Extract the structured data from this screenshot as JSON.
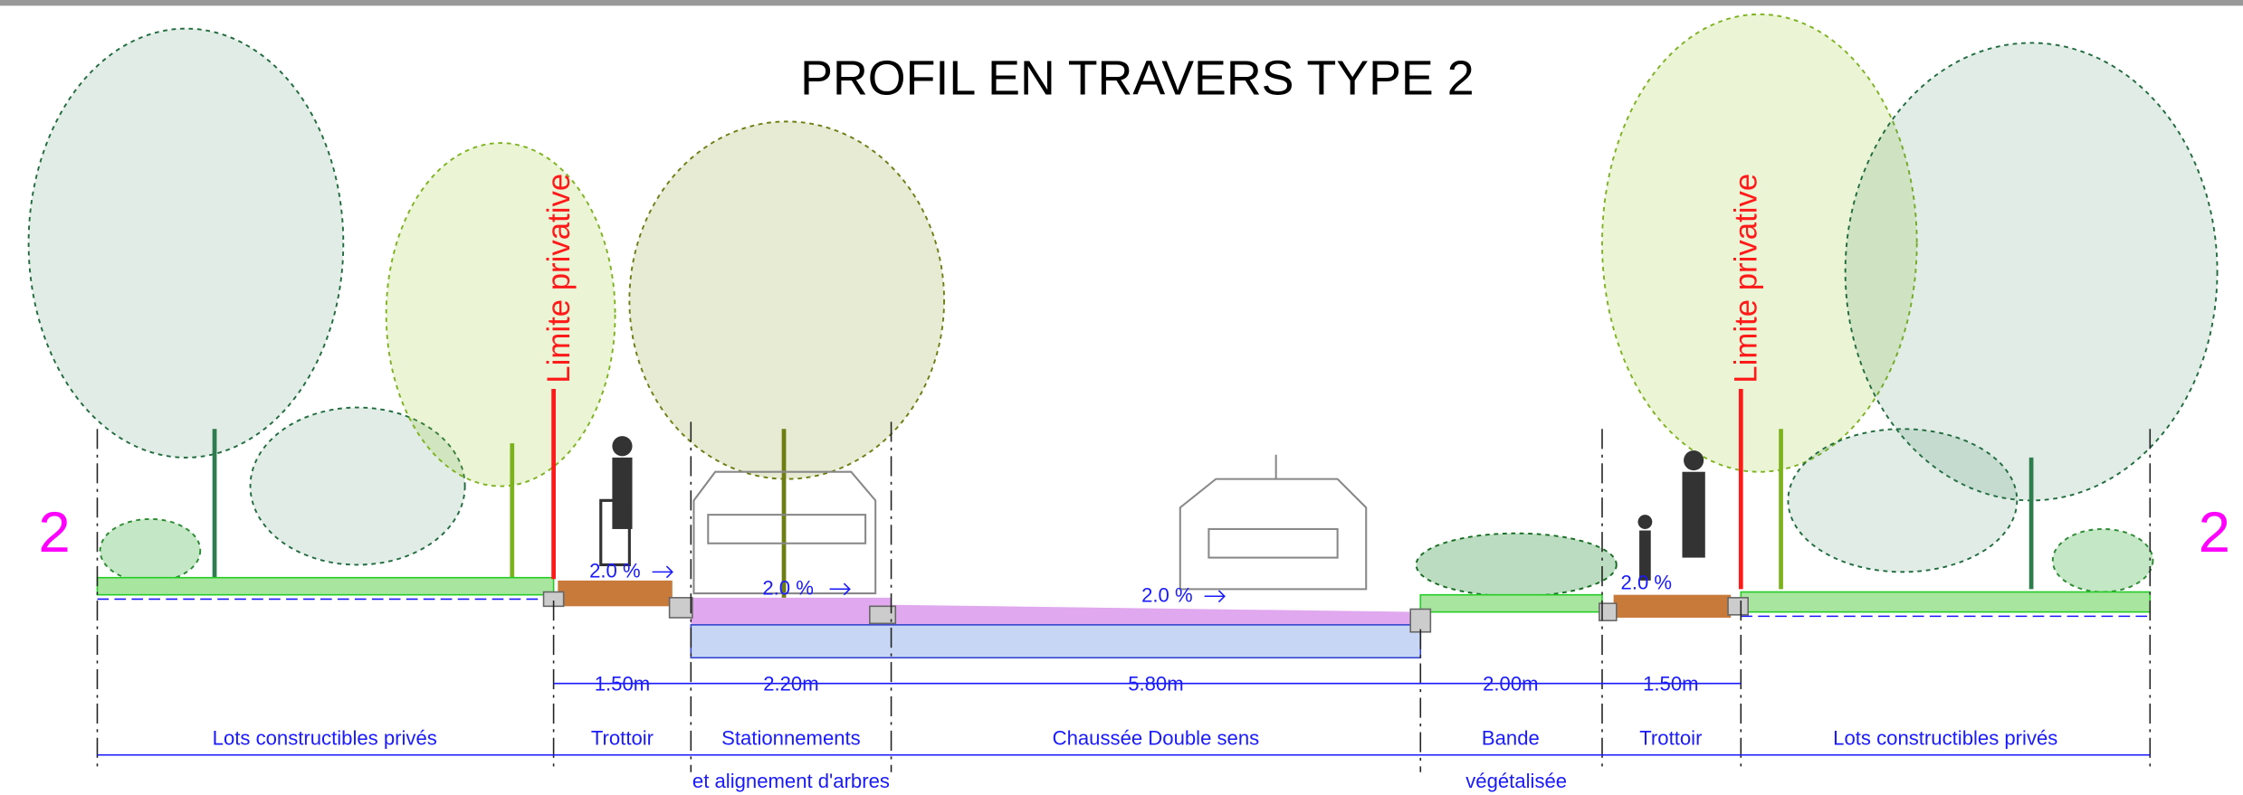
{
  "title": "PROFIL EN TRAVERS TYPE 2",
  "section_marks": [
    "2",
    "2"
  ],
  "property_lines": [
    "Limite privative",
    "Limite privative"
  ],
  "slopes": [
    "2.0 %",
    "2.0 %",
    "2.0 %",
    "2.0 %"
  ],
  "dimensions": [
    "1.50m",
    "2.20m",
    "5.80m",
    "2.00m",
    "1.50m"
  ],
  "zones": [
    {
      "label": "Lots constructibles privés"
    },
    {
      "label": "Trottoir"
    },
    {
      "label": "Stationnements",
      "sublabel": "et alignement d'arbres"
    },
    {
      "label": "Chaussée Double sens"
    },
    {
      "label": "Bande",
      "sublabel": "végétalisée"
    },
    {
      "label": "Trottoir"
    },
    {
      "label": "Lots constructibles privés"
    }
  ]
}
